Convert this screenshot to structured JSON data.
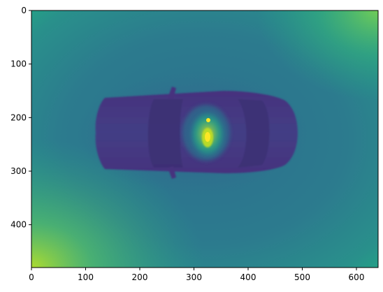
{
  "figure": {
    "type": "image-plot",
    "colormap": "viridis",
    "image_shape": [
      480,
      640
    ],
    "x_ticks": [
      "0",
      "100",
      "200",
      "300",
      "400",
      "500",
      "600"
    ],
    "x_tick_values": [
      0,
      100,
      200,
      300,
      400,
      500,
      600
    ],
    "y_ticks": [
      "0",
      "100",
      "200",
      "300",
      "400"
    ],
    "y_tick_values": [
      0,
      100,
      200,
      300,
      400
    ],
    "xlim": [
      0,
      640
    ],
    "ylim": [
      480,
      0
    ],
    "subject": "top-down intensity image of a car with a bright hotspot near its center",
    "colors": {
      "background_field": "#2f7d8e",
      "edge_glow": "#35b779",
      "corner_glow": "#7ad151",
      "car_body": "#433e85",
      "car_dark": "#3b2f73",
      "hotspot": "#fde725",
      "frame": "#000000"
    }
  }
}
